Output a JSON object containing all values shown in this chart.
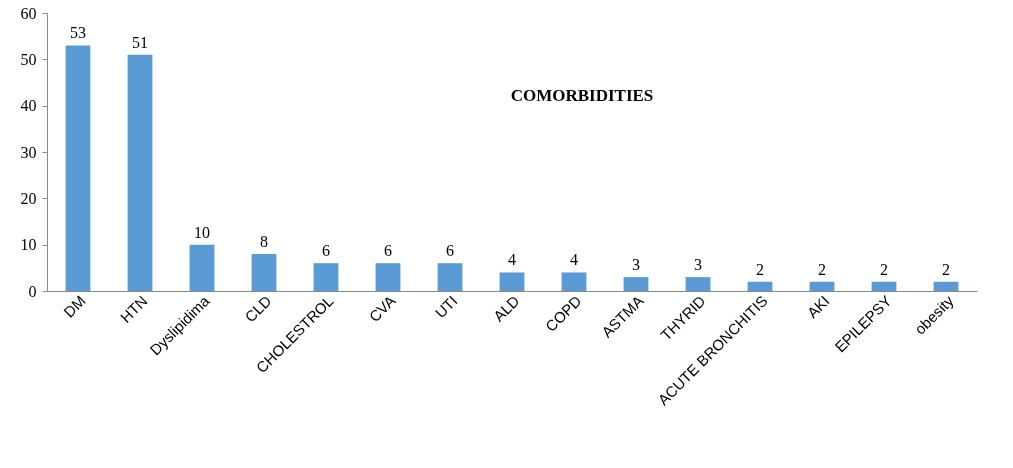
{
  "chart_data": {
    "type": "bar",
    "title": "COMORBIDITIES",
    "categories": [
      "DM",
      "HTN",
      "Dyslipidima",
      "CLD",
      "CHOLESTROL",
      "CVA",
      "UTI",
      "ALD",
      "COPD",
      "ASTMA",
      "THYRID",
      "ACUTE BRONCHITIS",
      "AKI",
      "EPILEPSY",
      "obesity"
    ],
    "values": [
      53,
      51,
      10,
      8,
      6,
      6,
      6,
      4,
      4,
      3,
      3,
      2,
      2,
      2,
      2
    ],
    "color": "#5b9bd5",
    "ylim": [
      0,
      60
    ],
    "yticks": [
      0,
      10,
      20,
      30,
      40,
      50,
      60
    ],
    "data_labels": true
  }
}
